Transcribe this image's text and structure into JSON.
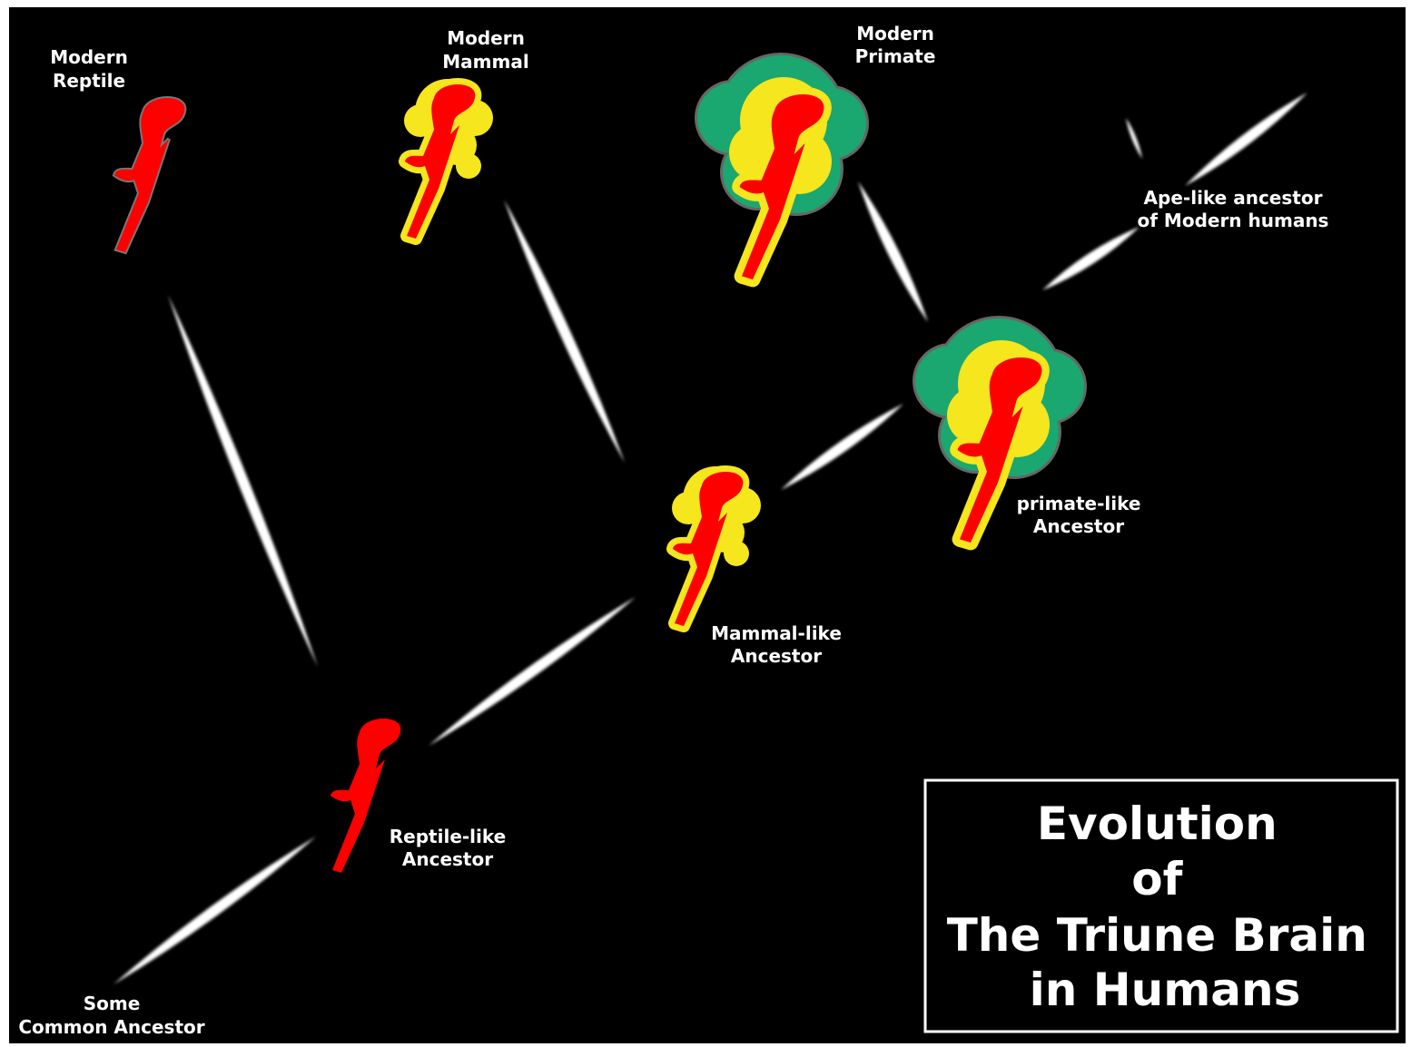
{
  "title": {
    "lines": [
      "Evolution",
      "of",
      "The Triune Brain",
      "in Humans"
    ]
  },
  "nodes": [
    {
      "label": [
        "Modern",
        "Reptile"
      ]
    },
    {
      "label": [
        "Modern",
        "Mammal"
      ]
    },
    {
      "label": [
        "Modern",
        "Primate"
      ]
    },
    {
      "label": [
        "Ape-like ancestor",
        "of Modern humans"
      ]
    },
    {
      "label": [
        "primate-like",
        "Ancestor"
      ]
    },
    {
      "label": [
        "Mammal-like",
        "Ancestor"
      ]
    },
    {
      "label": [
        "Reptile-like",
        "Ancestor"
      ]
    },
    {
      "label": [
        "Some",
        "Common Ancestor"
      ]
    }
  ]
}
